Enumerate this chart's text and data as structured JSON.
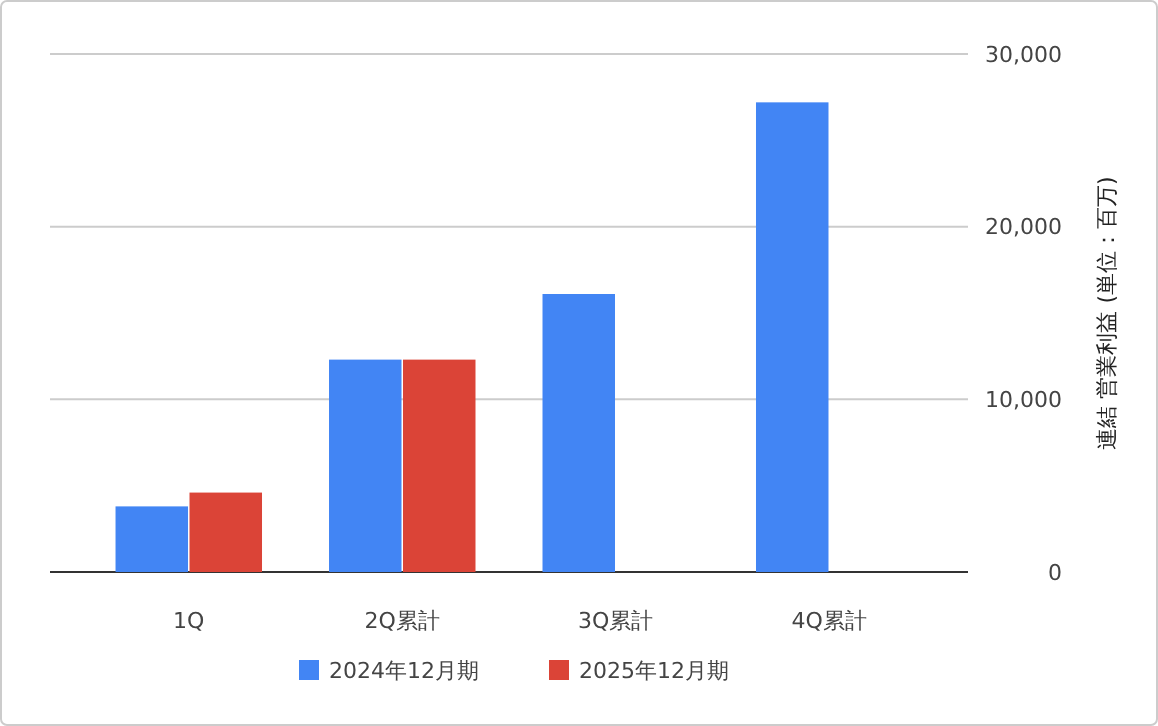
{
  "chart_data": {
    "type": "bar",
    "ylabel": "連結 営業利益 (単位：百万)",
    "categories": [
      "1Q",
      "2Q累計",
      "3Q累計",
      "4Q累計"
    ],
    "series": [
      {
        "name": "2024年12月期",
        "color": "#4285f4",
        "values": [
          3800,
          12300,
          16100,
          27200
        ]
      },
      {
        "name": "2025年12月期",
        "color": "#db4437",
        "values": [
          4600,
          12300,
          null,
          null
        ]
      }
    ],
    "ylim": [
      0,
      30000
    ],
    "yticks": [
      {
        "value": 0,
        "label": "0"
      },
      {
        "value": 10000,
        "label": "10,000"
      },
      {
        "value": 20000,
        "label": "20,000"
      },
      {
        "value": 30000,
        "label": "30,000"
      }
    ],
    "grid": "y",
    "legend": "bottom"
  }
}
